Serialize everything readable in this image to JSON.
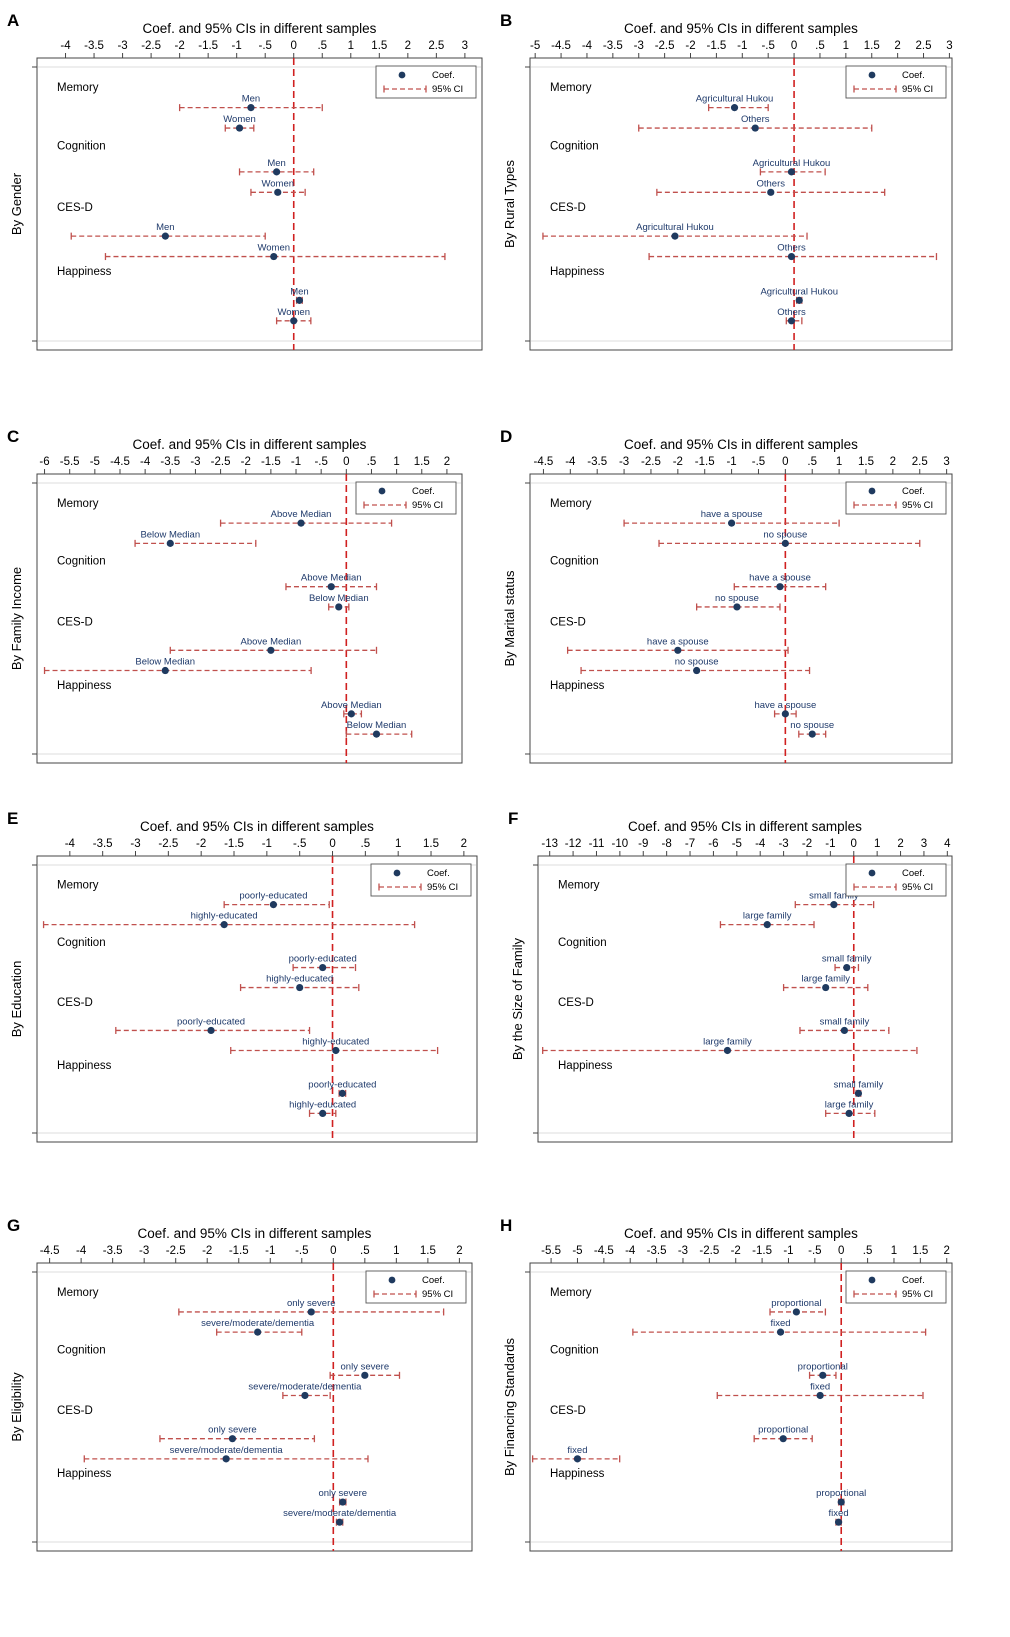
{
  "colors": {
    "marker": "#1f3a5f",
    "ci": "#c0504d",
    "zero_line": "#d02020",
    "frame": "#444444",
    "plot_bg": "#ffffff",
    "point_label": "#1f3a6b"
  },
  "legend": {
    "coef_label": "Coef.",
    "ci_label": "95% CI"
  },
  "chart_data": [
    {
      "panel": "A",
      "type": "scatter",
      "orientation": "horizontal-ci",
      "title": "Coef. and 95% CIs in different samples",
      "ylabel": "By Gender",
      "xlim": [
        -4.5,
        3.3
      ],
      "ticks": [
        -4,
        -3.5,
        -3,
        -2.5,
        -2,
        -1.5,
        -1,
        -0.5,
        0,
        0.5,
        1,
        1.5,
        2,
        2.5,
        3
      ],
      "tick_labels": [
        "-4",
        "-3.5",
        "-3",
        "-2.5",
        "-2",
        "-1.5",
        "-1",
        "-.5",
        "0",
        ".5",
        "1",
        "1.5",
        "2",
        "2.5",
        "3"
      ],
      "groups": [
        {
          "label": "Memory",
          "points": [
            {
              "label": "Men",
              "coef": -0.75,
              "lo": -2.0,
              "hi": 0.5
            },
            {
              "label": "Women",
              "coef": -0.95,
              "lo": -1.2,
              "hi": -0.7
            }
          ]
        },
        {
          "label": "Cognition",
          "points": [
            {
              "label": "Men",
              "coef": -0.3,
              "lo": -0.95,
              "hi": 0.35
            },
            {
              "label": "Women",
              "coef": -0.28,
              "lo": -0.75,
              "hi": 0.2
            }
          ]
        },
        {
          "label": "CES-D",
          "points": [
            {
              "label": "Men",
              "coef": -2.25,
              "lo": -3.9,
              "hi": -0.5
            },
            {
              "label": "Women",
              "coef": -0.35,
              "lo": -3.3,
              "hi": 2.65
            }
          ]
        },
        {
          "label": "Happiness",
          "points": [
            {
              "label": "Men",
              "coef": 0.1,
              "lo": 0.05,
              "hi": 0.15
            },
            {
              "label": "Women",
              "coef": 0.0,
              "lo": -0.3,
              "hi": 0.3
            }
          ]
        }
      ]
    },
    {
      "panel": "B",
      "type": "scatter",
      "orientation": "horizontal-ci",
      "title": "Coef. and 95% CIs in different samples",
      "ylabel": "By Rural Types",
      "xlim": [
        -5.1,
        3.05
      ],
      "ticks": [
        -5,
        -4.5,
        -4,
        -3.5,
        -3,
        -2.5,
        -2,
        -1.5,
        -1,
        -0.5,
        0,
        0.5,
        1,
        1.5,
        2,
        2.5,
        3
      ],
      "tick_labels": [
        "-5",
        "-4.5",
        "-4",
        "-3.5",
        "-3",
        "-2.5",
        "-2",
        "-1.5",
        "-1",
        "-.5",
        "0",
        ".5",
        "1",
        "1.5",
        "2",
        "2.5",
        "3"
      ],
      "groups": [
        {
          "label": "Memory",
          "points": [
            {
              "label": "Agricultural Hukou",
              "coef": -1.15,
              "lo": -1.65,
              "hi": -0.5
            },
            {
              "label": "Others",
              "coef": -0.75,
              "lo": -3.0,
              "hi": 1.5
            }
          ]
        },
        {
          "label": "Cognition",
          "points": [
            {
              "label": "Agricultural Hukou",
              "coef": -0.05,
              "lo": -0.65,
              "hi": 0.6
            },
            {
              "label": "Others",
              "coef": -0.45,
              "lo": -2.65,
              "hi": 1.75
            }
          ]
        },
        {
          "label": "CES-D",
          "points": [
            {
              "label": "Agricultural Hukou",
              "coef": -2.3,
              "lo": -4.85,
              "hi": 0.25
            },
            {
              "label": "Others",
              "coef": -0.05,
              "lo": -2.8,
              "hi": 2.75
            }
          ]
        },
        {
          "label": "Happiness",
          "points": [
            {
              "label": "Agricultural Hukou",
              "coef": 0.1,
              "lo": 0.05,
              "hi": 0.15
            },
            {
              "label": "Others",
              "coef": -0.05,
              "lo": -0.15,
              "hi": 0.15
            }
          ]
        }
      ]
    },
    {
      "panel": "C",
      "type": "scatter",
      "orientation": "horizontal-ci",
      "title": "Coef. and 95% CIs in different samples",
      "ylabel": "By Family Income",
      "xlim": [
        -6.15,
        2.3
      ],
      "ticks": [
        -6,
        -5.5,
        -5,
        -4.5,
        -4,
        -3.5,
        -3,
        -2.5,
        -2,
        -1.5,
        -1,
        -0.5,
        0,
        0.5,
        1,
        1.5,
        2
      ],
      "tick_labels": [
        "-6",
        "-5.5",
        "-5",
        "-4.5",
        "-4",
        "-3.5",
        "-3",
        "-2.5",
        "-2",
        "-1.5",
        "-1",
        "-.5",
        "0",
        ".5",
        "1",
        "1.5",
        "2"
      ],
      "groups": [
        {
          "label": "Memory",
          "points": [
            {
              "label": "Above Median",
              "coef": -0.9,
              "lo": -2.5,
              "hi": 0.9
            },
            {
              "label": "Below Median",
              "coef": -3.5,
              "lo": -4.2,
              "hi": -1.8
            }
          ]
        },
        {
          "label": "Cognition",
          "points": [
            {
              "label": "Above Median",
              "coef": -0.3,
              "lo": -1.2,
              "hi": 0.6
            },
            {
              "label": "Below Median",
              "coef": -0.15,
              "lo": -0.35,
              "hi": 0.05
            }
          ]
        },
        {
          "label": "CES-D",
          "points": [
            {
              "label": "Above Median",
              "coef": -1.5,
              "lo": -3.5,
              "hi": 0.6
            },
            {
              "label": "Below Median",
              "coef": -3.6,
              "lo": -6.0,
              "hi": -0.7
            }
          ]
        },
        {
          "label": "Happiness",
          "points": [
            {
              "label": "Above Median",
              "coef": 0.1,
              "lo": -0.05,
              "hi": 0.3
            },
            {
              "label": "Below Median",
              "coef": 0.6,
              "lo": 0.0,
              "hi": 1.3
            }
          ]
        }
      ]
    },
    {
      "panel": "D",
      "type": "scatter",
      "orientation": "horizontal-ci",
      "title": "Coef. and 95% CIs in different samples",
      "ylabel": "By Marital status",
      "xlim": [
        -4.75,
        3.1
      ],
      "ticks": [
        -4.5,
        -4,
        -3.5,
        -3,
        -2.5,
        -2,
        -1.5,
        -1,
        -0.5,
        0,
        0.5,
        1,
        1.5,
        2,
        2.5,
        3
      ],
      "tick_labels": [
        "-4.5",
        "-4",
        "-3.5",
        "-3",
        "-2.5",
        "-2",
        "-1.5",
        "-1",
        "-.5",
        "0",
        ".5",
        "1",
        "1.5",
        "2",
        "2.5",
        "3"
      ],
      "groups": [
        {
          "label": "Memory",
          "points": [
            {
              "label": "have a spouse",
              "coef": -1.0,
              "lo": -3.0,
              "hi": 1.0
            },
            {
              "label": "no spouse",
              "coef": 0.0,
              "lo": -2.35,
              "hi": 2.5
            }
          ]
        },
        {
          "label": "Cognition",
          "points": [
            {
              "label": "have a spouse",
              "coef": -0.1,
              "lo": -0.95,
              "hi": 0.75
            },
            {
              "label": "no spouse",
              "coef": -0.9,
              "lo": -1.65,
              "hi": -0.1
            }
          ]
        },
        {
          "label": "CES-D",
          "points": [
            {
              "label": "have a spouse",
              "coef": -2.0,
              "lo": -4.05,
              "hi": 0.05
            },
            {
              "label": "no spouse",
              "coef": -1.65,
              "lo": -3.8,
              "hi": 0.45
            }
          ]
        },
        {
          "label": "Happiness",
          "points": [
            {
              "label": "have a spouse",
              "coef": 0.0,
              "lo": -0.2,
              "hi": 0.2
            },
            {
              "label": "no spouse",
              "coef": 0.5,
              "lo": 0.25,
              "hi": 0.75
            }
          ]
        }
      ]
    },
    {
      "panel": "E",
      "type": "scatter",
      "orientation": "horizontal-ci",
      "title": "Coef. and 95% CIs in different samples",
      "ylabel": "By Education",
      "xlim": [
        -4.5,
        2.2
      ],
      "ticks": [
        -4,
        -3.5,
        -3,
        -2.5,
        -2,
        -1.5,
        -1,
        -0.5,
        0,
        0.5,
        1,
        1.5,
        2
      ],
      "tick_labels": [
        "-4",
        "-3.5",
        "-3",
        "-2.5",
        "-2",
        "-1.5",
        "-1",
        "-.5",
        "0",
        ".5",
        "1",
        "1.5",
        "2"
      ],
      "groups": [
        {
          "label": "Memory",
          "points": [
            {
              "label": "poorly-educated",
              "coef": -0.9,
              "lo": -1.65,
              "hi": -0.05
            },
            {
              "label": "highly-educated",
              "coef": -1.65,
              "lo": -4.4,
              "hi": 1.25
            }
          ]
        },
        {
          "label": "Cognition",
          "points": [
            {
              "label": "poorly-educated",
              "coef": -0.15,
              "lo": -0.6,
              "hi": 0.35
            },
            {
              "label": "highly-educated",
              "coef": -0.5,
              "lo": -1.4,
              "hi": 0.4
            }
          ]
        },
        {
          "label": "CES-D",
          "points": [
            {
              "label": "poorly-educated",
              "coef": -1.85,
              "lo": -3.3,
              "hi": -0.35
            },
            {
              "label": "highly-educated",
              "coef": 0.05,
              "lo": -1.55,
              "hi": 1.6
            }
          ]
        },
        {
          "label": "Happiness",
          "points": [
            {
              "label": "poorly-educated",
              "coef": 0.15,
              "lo": 0.1,
              "hi": 0.2
            },
            {
              "label": "highly-educated",
              "coef": -0.15,
              "lo": -0.35,
              "hi": 0.05
            }
          ]
        }
      ]
    },
    {
      "panel": "F",
      "type": "scatter",
      "orientation": "horizontal-ci",
      "title": "Coef. and 95% CIs in different samples",
      "ylabel": "By the Size of Family",
      "xlim": [
        -13.5,
        4.2
      ],
      "ticks": [
        -13,
        -12,
        -11,
        -10,
        -9,
        -8,
        -7,
        -6,
        -5,
        -4,
        -3,
        -2,
        -1,
        0,
        1,
        2,
        3,
        4
      ],
      "tick_labels": [
        "-13",
        "-12",
        "-11",
        "-10",
        "-9",
        "-8",
        "-7",
        "-6",
        "-5",
        "-4",
        "-3",
        "-2",
        "-1",
        "0",
        "1",
        "2",
        "3",
        "4"
      ],
      "groups": [
        {
          "label": "Memory",
          "points": [
            {
              "label": "small family",
              "coef": -0.85,
              "lo": -2.5,
              "hi": 0.85
            },
            {
              "label": "large family",
              "coef": -3.7,
              "lo": -5.7,
              "hi": -1.7
            }
          ]
        },
        {
          "label": "Cognition",
          "points": [
            {
              "label": "small family",
              "coef": -0.3,
              "lo": -0.8,
              "hi": 0.2
            },
            {
              "label": "large family",
              "coef": -1.2,
              "lo": -3.0,
              "hi": 0.6
            }
          ]
        },
        {
          "label": "CES-D",
          "points": [
            {
              "label": "small family",
              "coef": -0.4,
              "lo": -2.3,
              "hi": 1.5
            },
            {
              "label": "large family",
              "coef": -5.4,
              "lo": -13.3,
              "hi": 2.7
            }
          ]
        },
        {
          "label": "Happiness",
          "points": [
            {
              "label": "small family",
              "coef": 0.2,
              "lo": 0.1,
              "hi": 0.3
            },
            {
              "label": "large family",
              "coef": -0.2,
              "lo": -1.2,
              "hi": 0.9
            }
          ]
        }
      ]
    },
    {
      "panel": "G",
      "type": "scatter",
      "orientation": "horizontal-ci",
      "title": "Coef. and 95% CIs in different samples",
      "ylabel": "By Eligibility",
      "xlim": [
        -4.7,
        2.2
      ],
      "ticks": [
        -4.5,
        -4,
        -3.5,
        -3,
        -2.5,
        -2,
        -1.5,
        -1,
        -0.5,
        0,
        0.5,
        1,
        1.5,
        2
      ],
      "tick_labels": [
        "-4.5",
        "-4",
        "-3.5",
        "-3",
        "-2.5",
        "-2",
        "-1.5",
        "-1",
        "-.5",
        "0",
        ".5",
        "1",
        "1.5",
        "2"
      ],
      "groups": [
        {
          "label": "Memory",
          "points": [
            {
              "label": "only severe",
              "coef": -0.35,
              "lo": -2.45,
              "hi": 1.75
            },
            {
              "label": "severe/moderate/dementia",
              "coef": -1.2,
              "lo": -1.85,
              "hi": -0.5
            }
          ]
        },
        {
          "label": "Cognition",
          "points": [
            {
              "label": "only severe",
              "coef": 0.5,
              "lo": -0.05,
              "hi": 1.05
            },
            {
              "label": "severe/moderate/dementia",
              "coef": -0.45,
              "lo": -0.8,
              "hi": -0.05
            }
          ]
        },
        {
          "label": "CES-D",
          "points": [
            {
              "label": "only severe",
              "coef": -1.6,
              "lo": -2.75,
              "hi": -0.3
            },
            {
              "label": "severe/moderate/dementia",
              "coef": -1.7,
              "lo": -3.95,
              "hi": 0.55
            }
          ]
        },
        {
          "label": "Happiness",
          "points": [
            {
              "label": "only severe",
              "coef": 0.15,
              "lo": 0.1,
              "hi": 0.2
            },
            {
              "label": "severe/moderate/dementia",
              "coef": 0.1,
              "lo": 0.05,
              "hi": 0.15
            }
          ]
        }
      ]
    },
    {
      "panel": "H",
      "type": "scatter",
      "orientation": "horizontal-ci",
      "title": "Coef. and 95% CIs in different samples",
      "ylabel": "By Financing Standards",
      "xlim": [
        -5.9,
        2.1
      ],
      "ticks": [
        -5.5,
        -5,
        -4.5,
        -4,
        -3.5,
        -3,
        -2.5,
        -2,
        -1.5,
        -1,
        -0.5,
        0,
        0.5,
        1,
        1.5,
        2
      ],
      "tick_labels": [
        "-5.5",
        "-5",
        "-4.5",
        "-4",
        "-3.5",
        "-3",
        "-2.5",
        "-2",
        "-1.5",
        "-1",
        "-.5",
        "0",
        ".5",
        "1",
        "1.5",
        "2"
      ],
      "groups": [
        {
          "label": "Memory",
          "points": [
            {
              "label": "proportional",
              "coef": -0.85,
              "lo": -1.35,
              "hi": -0.3
            },
            {
              "label": "fixed",
              "coef": -1.15,
              "lo": -3.95,
              "hi": 1.6
            }
          ]
        },
        {
          "label": "Cognition",
          "points": [
            {
              "label": "proportional",
              "coef": -0.35,
              "lo": -0.6,
              "hi": -0.1
            },
            {
              "label": "fixed",
              "coef": -0.4,
              "lo": -2.35,
              "hi": 1.55
            }
          ]
        },
        {
          "label": "CES-D",
          "points": [
            {
              "label": "proportional",
              "coef": -1.1,
              "lo": -1.65,
              "hi": -0.55
            },
            {
              "label": "fixed",
              "coef": -5.0,
              "lo": -5.85,
              "hi": -4.2
            }
          ]
        },
        {
          "label": "Happiness",
          "points": [
            {
              "label": "proportional",
              "coef": 0.0,
              "lo": -0.05,
              "hi": 0.05
            },
            {
              "label": "fixed",
              "coef": -0.05,
              "lo": -0.1,
              "hi": 0.0
            }
          ]
        }
      ]
    }
  ]
}
